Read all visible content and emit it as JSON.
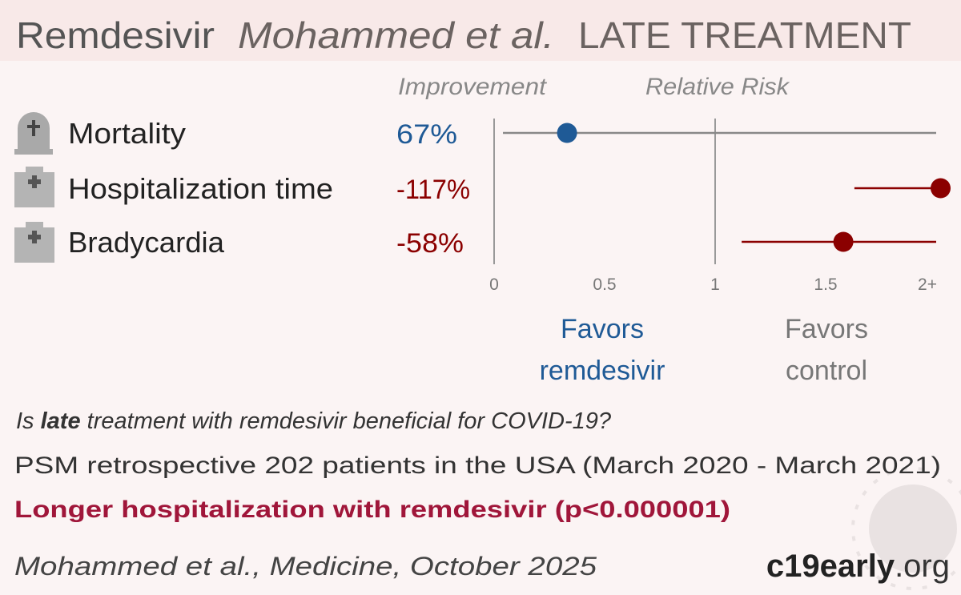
{
  "header": {
    "drug": "Remdesivir",
    "study": "Mohammed et al.",
    "stage": "LATE TREATMENT"
  },
  "chart_data": {
    "type": "forest",
    "column_labels": [
      "Improvement",
      "Relative Risk"
    ],
    "categories": [
      "Mortality",
      "Hospitalization time",
      "Bradycardia"
    ],
    "improvement": [
      "67%",
      "-117%",
      "-58%"
    ],
    "values": [
      0.33,
      2.02,
      1.58
    ],
    "ci_low": [
      0.04,
      1.63,
      1.12
    ],
    "ci_high": [
      2.0,
      2.0,
      2.0
    ],
    "colors": [
      "#1f5a96",
      "#8b0000",
      "#8b0000"
    ],
    "xlim": [
      0,
      2.1
    ],
    "xticks": [
      0,
      0.5,
      1,
      1.5,
      {
        "value": 2,
        "label": "2+"
      }
    ],
    "favors": [
      [
        "Favors",
        "remdesivir"
      ],
      [
        "Favors",
        "control"
      ]
    ],
    "favors_colors": [
      "#1f5a96",
      "#777777"
    ]
  },
  "question": [
    "Is ",
    "late",
    " treatment with remdesivir beneficial for COVID-19?"
  ],
  "details": "PSM retrospective 202 patients in the USA (March 2020 - March 2021)",
  "conclusion": "Longer hospitalization with remdesivir (p<0.000001)",
  "citation": "Mohammed et al., Medicine, October 2025",
  "brand": [
    "c19",
    "early",
    ".org"
  ]
}
